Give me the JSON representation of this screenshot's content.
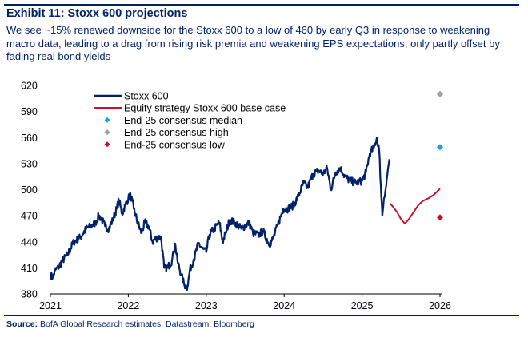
{
  "exhibit": {
    "title": "Exhibit 11: Stoxx 600 projections",
    "subtitle": "We see ~15% renewed downside for the Stoxx 600 to a low of 460 by early Q3 in response to weakening macro data, leading to a drag from rising risk premia and weakening EPS expectations, only partly offset by fading real bond yields",
    "source_label": "Source:",
    "source_text": "BofA Global Research estimates, Datastream, Bloomberg"
  },
  "colors": {
    "navy": "#012169",
    "red": "#c41230",
    "blue": "#1fa3e0",
    "grey": "#9d9d9d",
    "dark_red": "#c8102e"
  },
  "chart_data": {
    "type": "line",
    "xlim": [
      2021.0,
      2026.0
    ],
    "ylim": [
      380,
      620
    ],
    "x_ticks": [
      2021,
      2022,
      2023,
      2024,
      2025,
      2026
    ],
    "x_tick_labels": [
      "2021",
      "2022",
      "2023",
      "2024",
      "2025",
      "2026"
    ],
    "y_ticks": [
      380,
      410,
      440,
      470,
      500,
      530,
      560,
      590,
      620
    ],
    "y_tick_labels": [
      "380",
      "410",
      "440",
      "470",
      "500",
      "530",
      "560",
      "590",
      "620"
    ],
    "legend_position": "top-left",
    "series": [
      {
        "name": "Stoxx 600",
        "style": "line",
        "color": "#012169",
        "anchors": [
          [
            2021.0,
            402
          ],
          [
            2021.03,
            399
          ],
          [
            2021.06,
            407
          ],
          [
            2021.1,
            410
          ],
          [
            2021.15,
            418
          ],
          [
            2021.22,
            425
          ],
          [
            2021.3,
            440
          ],
          [
            2021.38,
            445
          ],
          [
            2021.46,
            455
          ],
          [
            2021.52,
            458
          ],
          [
            2021.58,
            462
          ],
          [
            2021.62,
            470
          ],
          [
            2021.66,
            466
          ],
          [
            2021.7,
            458
          ],
          [
            2021.75,
            455
          ],
          [
            2021.8,
            465
          ],
          [
            2021.85,
            478
          ],
          [
            2021.88,
            488
          ],
          [
            2021.92,
            472
          ],
          [
            2021.96,
            482
          ],
          [
            2022.0,
            490
          ],
          [
            2022.03,
            494
          ],
          [
            2022.07,
            478
          ],
          [
            2022.12,
            462
          ],
          [
            2022.17,
            450
          ],
          [
            2022.21,
            462
          ],
          [
            2022.26,
            458
          ],
          [
            2022.31,
            440
          ],
          [
            2022.37,
            445
          ],
          [
            2022.42,
            445
          ],
          [
            2022.46,
            410
          ],
          [
            2022.5,
            410
          ],
          [
            2022.56,
            418
          ],
          [
            2022.6,
            438
          ],
          [
            2022.63,
            418
          ],
          [
            2022.68,
            402
          ],
          [
            2022.72,
            390
          ],
          [
            2022.76,
            388
          ],
          [
            2022.79,
            408
          ],
          [
            2022.84,
            420
          ],
          [
            2022.9,
            438
          ],
          [
            2022.95,
            432
          ],
          [
            2023.0,
            428
          ],
          [
            2023.04,
            448
          ],
          [
            2023.1,
            455
          ],
          [
            2023.17,
            462
          ],
          [
            2023.21,
            440
          ],
          [
            2023.25,
            450
          ],
          [
            2023.3,
            465
          ],
          [
            2023.37,
            462
          ],
          [
            2023.45,
            455
          ],
          [
            2023.55,
            462
          ],
          [
            2023.6,
            450
          ],
          [
            2023.67,
            448
          ],
          [
            2023.73,
            452
          ],
          [
            2023.81,
            437
          ],
          [
            2023.86,
            444
          ],
          [
            2023.92,
            460
          ],
          [
            2023.99,
            478
          ],
          [
            2024.05,
            478
          ],
          [
            2024.12,
            482
          ],
          [
            2024.18,
            492
          ],
          [
            2024.25,
            508
          ],
          [
            2024.3,
            502
          ],
          [
            2024.37,
            518
          ],
          [
            2024.44,
            522
          ],
          [
            2024.5,
            518
          ],
          [
            2024.55,
            525
          ],
          [
            2024.6,
            500
          ],
          [
            2024.66,
            520
          ],
          [
            2024.72,
            525
          ],
          [
            2024.78,
            515
          ],
          [
            2024.85,
            510
          ],
          [
            2024.92,
            508
          ],
          [
            2025.0,
            510
          ],
          [
            2025.05,
            520
          ],
          [
            2025.1,
            542
          ],
          [
            2025.15,
            548
          ],
          [
            2025.19,
            560
          ],
          [
            2025.22,
            545
          ],
          [
            2025.24,
            505
          ],
          [
            2025.26,
            470
          ],
          [
            2025.28,
            490
          ],
          [
            2025.31,
            505
          ],
          [
            2025.33,
            522
          ],
          [
            2025.35,
            535
          ]
        ]
      },
      {
        "name": "Equity strategy Stoxx 600 base case",
        "style": "line",
        "color": "#c41230",
        "anchors": [
          [
            2025.36,
            484
          ],
          [
            2025.4,
            480
          ],
          [
            2025.45,
            474
          ],
          [
            2025.5,
            466
          ],
          [
            2025.55,
            461
          ],
          [
            2025.6,
            466
          ],
          [
            2025.66,
            474
          ],
          [
            2025.72,
            482
          ],
          [
            2025.78,
            487
          ],
          [
            2025.85,
            490
          ],
          [
            2025.92,
            494
          ],
          [
            2026.0,
            501
          ]
        ]
      },
      {
        "name": "End-25 consensus median",
        "style": "marker",
        "color": "#1fa3e0",
        "points": [
          [
            2026.0,
            549
          ]
        ]
      },
      {
        "name": "End-25 consensus high",
        "style": "marker",
        "color": "#9d9d9d",
        "points": [
          [
            2026.0,
            610
          ]
        ]
      },
      {
        "name": "End-25 consensus low",
        "style": "marker",
        "color": "#c8102e",
        "points": [
          [
            2026.0,
            468
          ]
        ]
      }
    ]
  }
}
